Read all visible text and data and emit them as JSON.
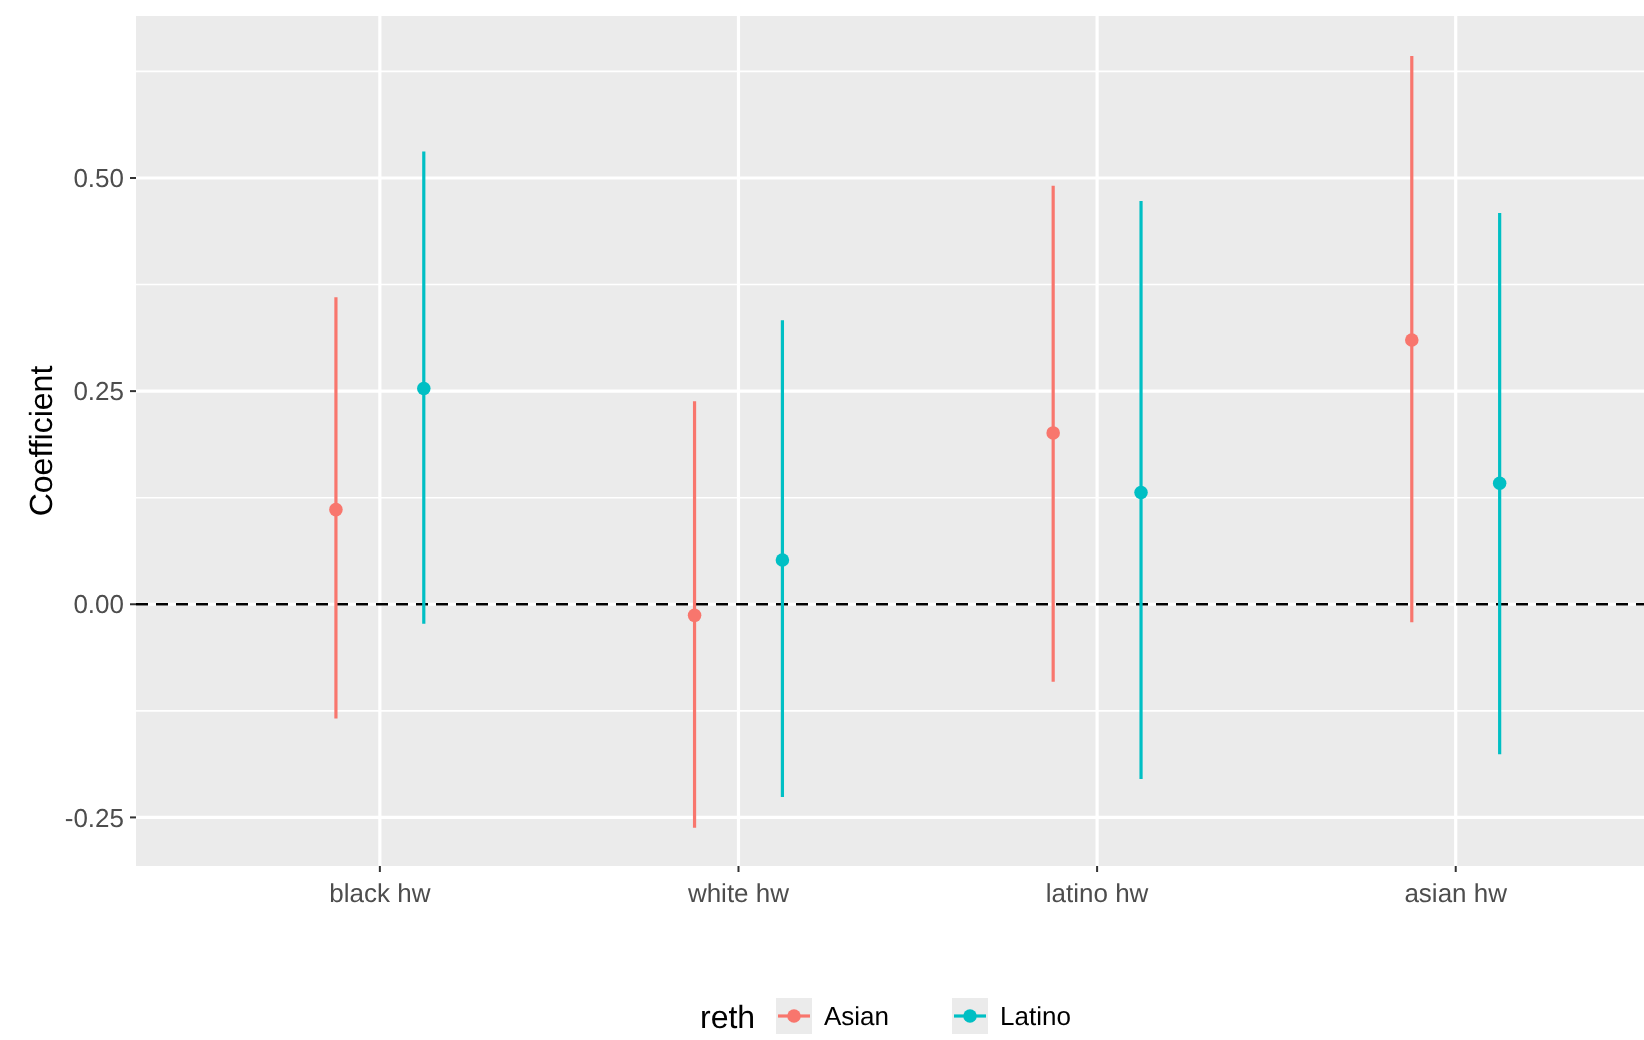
{
  "chart_data": {
    "type": "scatter",
    "ylabel": "Coefficient",
    "legend_title": "reth",
    "categories": [
      "black hw",
      "white hw",
      "latino hw",
      "asian hw"
    ],
    "series": [
      {
        "name": "Asian",
        "color": "#f8766d",
        "values": [
          0.111,
          -0.013,
          0.201,
          0.31
        ],
        "errors": [
          [
            -0.134,
            0.36
          ],
          [
            -0.262,
            0.238
          ],
          [
            -0.091,
            0.491
          ],
          [
            -0.021,
            0.643
          ]
        ]
      },
      {
        "name": "Latino",
        "color": "#00bfc4",
        "values": [
          0.253,
          0.052,
          0.131,
          0.142
        ],
        "errors": [
          [
            -0.023,
            0.531
          ],
          [
            -0.226,
            0.333
          ],
          [
            -0.205,
            0.473
          ],
          [
            -0.176,
            0.459
          ]
        ]
      }
    ],
    "ylim": [
      -0.307,
      0.69
    ],
    "yticks": [
      {
        "value": -0.25,
        "label": "-0.25"
      },
      {
        "value": 0,
        "label": "0.00"
      },
      {
        "value": 0.25,
        "label": "0.25"
      },
      {
        "value": 0.5,
        "label": "0.50"
      }
    ],
    "ref_lines": [
      {
        "axis": "y",
        "value": 0,
        "line_style": "dashed",
        "color": "#000000"
      }
    ],
    "grid": true,
    "legend": "bottom",
    "marker": "circle"
  }
}
